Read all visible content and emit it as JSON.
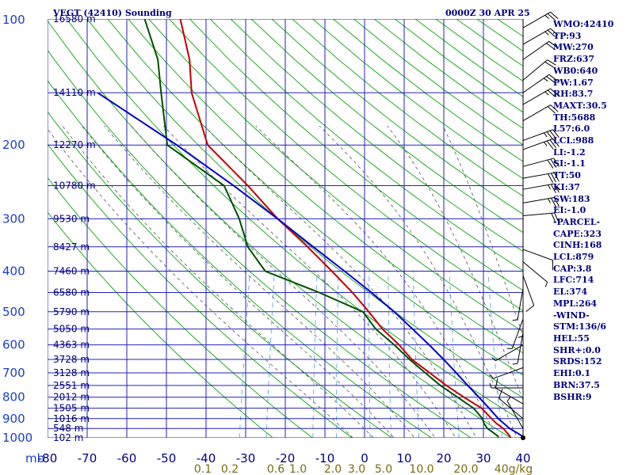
{
  "header": {
    "title": "VEGT (42410) Sounding",
    "time": "0000Z 30 APR 25"
  },
  "chart_data": {
    "type": "line",
    "title": "VEGT (42410) Sounding",
    "x_axis_label": "",
    "y_axis_label": "mb",
    "pressure_ticks": [
      100,
      200,
      300,
      400,
      500,
      600,
      700,
      800,
      900,
      1000
    ],
    "temperature_ticks": [
      -80,
      -70,
      -60,
      -50,
      -40,
      -30,
      -20,
      -10,
      0,
      10,
      20,
      30,
      40
    ],
    "mixing_ratio_ticks": [
      "0.1",
      "0.2",
      "0.6",
      "1.0",
      "2.0",
      "3.0",
      "5.0",
      "10.0",
      "20.0",
      "40g/kg"
    ],
    "height_labels": [
      {
        "p": 100,
        "label": "16580 m"
      },
      {
        "p": 150,
        "label": "14110 m"
      },
      {
        "p": 200,
        "label": "12270 m"
      },
      {
        "p": 250,
        "label": "10780 m"
      },
      {
        "p": 300,
        "label": "9530 m"
      },
      {
        "p": 350,
        "label": "8427 m"
      },
      {
        "p": 400,
        "label": "7460 m"
      },
      {
        "p": 450,
        "label": "6580 m"
      },
      {
        "p": 500,
        "label": "5790 m"
      },
      {
        "p": 550,
        "label": "5050 m"
      },
      {
        "p": 600,
        "label": "4363 m"
      },
      {
        "p": 650,
        "label": "3728 m"
      },
      {
        "p": 700,
        "label": "3128 m"
      },
      {
        "p": 750,
        "label": "2551 m"
      },
      {
        "p": 800,
        "label": "2012 m"
      },
      {
        "p": 850,
        "label": "1505 m"
      },
      {
        "p": 900,
        "label": "1016 m"
      },
      {
        "p": 950,
        "label": "548 m"
      },
      {
        "p": 1000,
        "label": "102 m"
      }
    ],
    "series": [
      {
        "name": "Temperature",
        "color": "#c00000",
        "p": [
          1010,
          1000,
          990,
          950,
          925,
          900,
          850,
          800,
          750,
          700,
          650,
          600,
          550,
          500,
          450,
          400,
          350,
          300,
          250,
          200,
          150,
          125,
          100
        ],
        "t": [
          28.5,
          26.8,
          26.5,
          24.4,
          22.4,
          20.8,
          17.6,
          12.4,
          7.2,
          2.2,
          -3.2,
          -7.4,
          -12.6,
          -17.2,
          -22.6,
          -29.2,
          -36.9,
          -46.3,
          -56.0,
          -68.8,
          -76.3,
          -79.0,
          -84.0
        ]
      },
      {
        "name": "Dewpoint",
        "color": "#005000",
        "p": [
          1010,
          1000,
          990,
          950,
          925,
          900,
          850,
          800,
          750,
          700,
          650,
          600,
          550,
          500,
          450,
          400,
          350,
          300,
          250,
          200,
          150,
          125,
          100
        ],
        "t": [
          24.0,
          23.8,
          23.5,
          20.4,
          19.2,
          18.5,
          15.6,
          10.8,
          5.7,
          1.1,
          -3.8,
          -8.6,
          -14.3,
          -18.7,
          -31.0,
          -46.0,
          -52.0,
          -56.0,
          -62.0,
          -79.0,
          -84.0,
          -87.0,
          -93.0
        ]
      },
      {
        "name": "Parcel",
        "color": "#0000c8",
        "p": [
          1000,
          950,
          900,
          850,
          800,
          750,
          700,
          650,
          600,
          550,
          500,
          450,
          400,
          350,
          300,
          250,
          200,
          150
        ],
        "t": [
          30.5,
          26.0,
          22.5,
          19.5,
          16.2,
          12.6,
          8.9,
          4.8,
          0.2,
          -5.0,
          -10.8,
          -17.8,
          -26.0,
          -35.5,
          -46.3,
          -59.6,
          -76.6,
          -100.0
        ]
      }
    ]
  },
  "indices": [
    "WMO:42410",
    "TP:93",
    "MW:270",
    "FRZ:637",
    "WB0:640",
    "PW:1.67",
    "RH:83.7",
    "MAXT:30.5",
    "TH:5688",
    "L57:6.0",
    "LCL:988",
    "LI:-1.2",
    "SI:-1.1",
    "TT:50",
    "KI:37",
    "SW:183",
    "EI:-1.0",
    "-PARCEL-",
    "CAPE:323",
    "CINH:168",
    "LCL:879",
    "CAP:3.8",
    "LFC:714",
    "EL:374",
    "MPL:264",
    "-WIND-",
    "STM:136/6",
    "HEL:55",
    "SHR+:0.0",
    "SRDS:152",
    "EHI:0.1",
    "BRN:37.5",
    "BSHR:9"
  ],
  "wind_profile": [
    {
      "p": 105,
      "dir": 60,
      "spd": 25
    },
    {
      "p": 115,
      "dir": 60,
      "spd": 25
    },
    {
      "p": 125,
      "dir": 55,
      "spd": 20
    },
    {
      "p": 140,
      "dir": 50,
      "spd": 20
    },
    {
      "p": 150,
      "dir": 55,
      "spd": 25
    },
    {
      "p": 160,
      "dir": 60,
      "spd": 25
    },
    {
      "p": 175,
      "dir": 60,
      "spd": 20
    },
    {
      "p": 195,
      "dir": 70,
      "spd": 35
    },
    {
      "p": 205,
      "dir": 70,
      "spd": 35
    },
    {
      "p": 225,
      "dir": 75,
      "spd": 30
    },
    {
      "p": 240,
      "dir": 80,
      "spd": 30
    },
    {
      "p": 255,
      "dir": 80,
      "spd": 25
    },
    {
      "p": 275,
      "dir": 80,
      "spd": 25
    },
    {
      "p": 295,
      "dir": 85,
      "spd": 20
    },
    {
      "p": 355,
      "dir": 110,
      "spd": 10
    },
    {
      "p": 380,
      "dir": 130,
      "spd": 5
    },
    {
      "p": 410,
      "dir": 160,
      "spd": 10
    },
    {
      "p": 440,
      "dir": 190,
      "spd": 5
    },
    {
      "p": 480,
      "dir": 180,
      "spd": 5
    },
    {
      "p": 520,
      "dir": 200,
      "spd": 5
    },
    {
      "p": 560,
      "dir": 190,
      "spd": 5
    },
    {
      "p": 600,
      "dir": 240,
      "spd": 5
    },
    {
      "p": 680,
      "dir": 250,
      "spd": 5
    },
    {
      "p": 760,
      "dir": 270,
      "spd": 5
    },
    {
      "p": 830,
      "dir": 300,
      "spd": 10
    },
    {
      "p": 900,
      "dir": 310,
      "spd": 10
    },
    {
      "p": 950,
      "dir": 330,
      "spd": 5
    },
    {
      "p": 1000,
      "dir": 270,
      "spd": 0
    }
  ]
}
